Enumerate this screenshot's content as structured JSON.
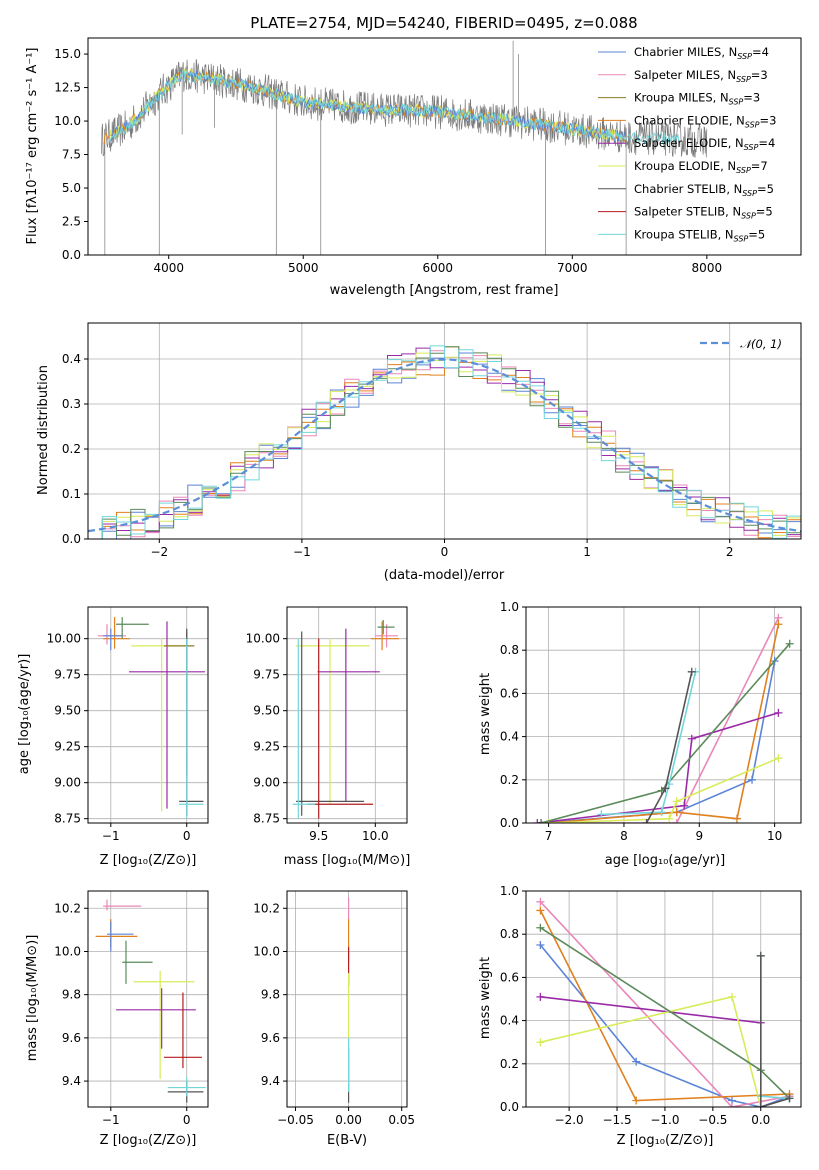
{
  "colors": {
    "Chabrier MILES": "#5b84d6",
    "Salpeter MILES": "#e987b8",
    "Kroupa MILES": "#8c7a1e",
    "Chabrier ELODIE": "#e0801e",
    "Salpeter ELODIE": "#9a2aa8",
    "Kroupa ELODIE": "#d8ec5a",
    "Chabrier STELIB": "#555555",
    "Salpeter STELIB": "#b21e1e",
    "Kroupa STELIB": "#72d6dc",
    "extra_green": "#5a8a5a",
    "normal": "#5b8fd8"
  },
  "chart_data": [
    {
      "id": "spectrum",
      "type": "line",
      "title": "PLATE=2754, MJD=54240, FIBERID=0495, z=0.088",
      "xlabel": "wavelength [Angstrom, rest frame]",
      "ylabel": "Flux [fλ10⁻¹⁷ erg cm⁻² s⁻¹ A⁻¹]",
      "xlim": [
        3400,
        8700
      ],
      "ylim": [
        0,
        16.2
      ],
      "xticks": [
        4000,
        5000,
        6000,
        7000,
        8000
      ],
      "yticks": [
        0.0,
        2.5,
        5.0,
        7.5,
        10.0,
        12.5,
        15.0
      ],
      "ytick_labels": [
        "0.0",
        "2.5",
        "5.0",
        "7.5",
        "10.0",
        "12.5",
        "15.0"
      ],
      "legend_position": "top-right",
      "legend": [
        {
          "label": "Chabrier MILES, N",
          "sub": "SSP",
          "tail": "=4"
        },
        {
          "label": "Salpeter MILES, N",
          "sub": "SSP",
          "tail": "=3"
        },
        {
          "label": "Kroupa MILES, N",
          "sub": "SSP",
          "tail": "=3"
        },
        {
          "label": "Chabrier ELODIE, N",
          "sub": "SSP",
          "tail": "=3"
        },
        {
          "label": "Salpeter ELODIE, N",
          "sub": "SSP",
          "tail": "=4"
        },
        {
          "label": "Kroupa ELODIE, N",
          "sub": "SSP",
          "tail": "=7"
        },
        {
          "label": "Chabrier STELIB, N",
          "sub": "SSP",
          "tail": "=5"
        },
        {
          "label": "Salpeter STELIB, N",
          "sub": "SSP",
          "tail": "=5"
        },
        {
          "label": "Kroupa STELIB, N",
          "sub": "SSP",
          "tail": "=5"
        }
      ],
      "continuum": [
        [
          3500,
          8.6
        ],
        [
          3700,
          9.6
        ],
        [
          3950,
          12.2
        ],
        [
          4100,
          13.5
        ],
        [
          4300,
          13.2
        ],
        [
          4600,
          12.6
        ],
        [
          5000,
          11.4
        ],
        [
          5500,
          10.9
        ],
        [
          6000,
          10.7
        ],
        [
          6500,
          10.1
        ],
        [
          7000,
          9.4
        ],
        [
          7400,
          8.8
        ],
        [
          7800,
          8.6
        ],
        [
          8300,
          8.4
        ],
        [
          8700,
          8.3
        ]
      ],
      "features": [
        [
          3525,
          0
        ],
        [
          3930,
          0
        ],
        [
          4100,
          9
        ],
        [
          4340,
          9.5
        ],
        [
          4800,
          0
        ],
        [
          5130,
          0
        ],
        [
          6800,
          0
        ],
        [
          7400,
          0
        ],
        [
          6560,
          16
        ],
        [
          6600,
          15
        ]
      ]
    },
    {
      "id": "residuals",
      "type": "line",
      "xlabel": "(data-model)/error",
      "ylabel": "Normed distribution",
      "xlim": [
        -2.5,
        2.5
      ],
      "ylim": [
        0,
        0.48
      ],
      "xticks": [
        -2,
        -1,
        0,
        1,
        2
      ],
      "xtick_labels": [
        "−2",
        "−1",
        "0",
        "1",
        "2"
      ],
      "yticks": [
        0.0,
        0.1,
        0.2,
        0.3,
        0.4
      ],
      "ytick_labels": [
        "0.0",
        "0.1",
        "0.2",
        "0.3",
        "0.4"
      ],
      "legend": "𝒩(0, 1)",
      "legend_position": "top-right",
      "grid": true
    },
    {
      "id": "age_vs_Z",
      "type": "scatter",
      "xlabel": "Z [log₁₀(Z/Z⊙)]",
      "ylabel": "age  [log₁₀(age/yr)]",
      "xlim": [
        -1.3,
        0.28
      ],
      "ylim": [
        8.72,
        10.22
      ],
      "xticks": [
        -1,
        0
      ],
      "xtick_labels": [
        "−1",
        "0"
      ],
      "yticks": [
        8.75,
        9.0,
        9.25,
        9.5,
        9.75,
        10.0
      ],
      "ytick_labels": [
        "8.75",
        "9.00",
        "9.25",
        "9.50",
        "9.75",
        "10.00"
      ],
      "points": [
        {
          "color": "Salpeter MILES",
          "x": -1.05,
          "y": 10.02,
          "xerr": [
            0.12,
            0.25
          ],
          "yerr": [
            0.06,
            0.08
          ]
        },
        {
          "color": "Chabrier ELODIE",
          "x": -0.95,
          "y": 10.0,
          "xerr": [
            0.15,
            0.2
          ],
          "yerr": [
            0.07,
            0.15
          ]
        },
        {
          "color": "Chabrier MILES",
          "x": -1.0,
          "y": 10.02,
          "xerr": [
            0.1,
            0.15
          ],
          "yerr": [
            0.1,
            0.05
          ]
        },
        {
          "color": "extra_green",
          "x": -0.85,
          "y": 10.1,
          "xerr": [
            0.08,
            0.35
          ],
          "yerr": [
            0.1,
            0.05
          ]
        },
        {
          "color": "Kroupa ELODIE",
          "x": -0.33,
          "y": 9.95,
          "xerr": [
            0.4,
            0.35
          ],
          "yerr": [
            1.15,
            0.05
          ]
        },
        {
          "color": "Salpeter ELODIE",
          "x": -0.26,
          "y": 9.77,
          "xerr": [
            0.5,
            0.5
          ],
          "yerr": [
            0.95,
            0.35
          ]
        },
        {
          "color": "Kroupa MILES",
          "x": 0.0,
          "y": 9.95,
          "xerr": [
            0.3,
            0.1
          ],
          "yerr": [
            0.9,
            0.1
          ]
        },
        {
          "color": "Chabrier STELIB",
          "x": 0.0,
          "y": 8.87,
          "xerr": [
            0.1,
            0.22
          ],
          "yerr": [
            0.1,
            1.2
          ]
        },
        {
          "color": "Kroupa STELIB",
          "x": 0.0,
          "y": 8.85,
          "xerr": [
            0.1,
            0.22
          ],
          "yerr": [
            0.1,
            1.15
          ]
        }
      ]
    },
    {
      "id": "age_vs_mass",
      "type": "scatter",
      "xlabel": "mass [log₁₀(M/M⊙)]",
      "xlim": [
        9.22,
        10.28
      ],
      "ylim": [
        8.72,
        10.22
      ],
      "xticks": [
        9.5,
        10.0
      ],
      "xtick_labels": [
        "9.5",
        "10.0"
      ],
      "yticks": [
        8.75,
        9.0,
        9.25,
        9.5,
        9.75,
        10.0
      ],
      "ytick_labels": [
        "8.75",
        "9.00",
        "9.25",
        "9.50",
        "9.75",
        "10.00"
      ],
      "points": [
        {
          "color": "Salpeter MILES",
          "x": 10.1,
          "y": 10.02,
          "xerr": [
            0.1,
            0.1
          ],
          "yerr": [
            0.08,
            0.08
          ]
        },
        {
          "color": "Chabrier ELODIE",
          "x": 10.06,
          "y": 10.0,
          "xerr": [
            0.1,
            0.15
          ],
          "yerr": [
            0.08,
            0.12
          ]
        },
        {
          "color": "Kroupa ELODIE",
          "x": 9.6,
          "y": 9.95,
          "xerr": [
            0.3,
            0.35
          ],
          "yerr": [
            1.1,
            0.05
          ]
        },
        {
          "color": "Salpeter ELODIE",
          "x": 9.74,
          "y": 9.77,
          "xerr": [
            0.25,
            0.3
          ],
          "yerr": [
            0.9,
            0.3
          ]
        },
        {
          "color": "extra_green",
          "x": 10.07,
          "y": 10.08,
          "xerr": [
            0.05,
            0.1
          ],
          "yerr": [
            0.05,
            0.05
          ]
        },
        {
          "color": "Chabrier STELIB",
          "x": 9.35,
          "y": 8.87,
          "xerr": [
            0.05,
            0.55
          ],
          "yerr": [
            0.1,
            1.18
          ]
        },
        {
          "color": "Salpeter STELIB",
          "x": 9.5,
          "y": 8.85,
          "xerr": [
            0.1,
            0.48
          ],
          "yerr": [
            0.1,
            1.15
          ]
        },
        {
          "color": "Kroupa STELIB",
          "x": 9.32,
          "y": 8.85,
          "xerr": [
            0.05,
            0.15
          ],
          "yerr": [
            0.1,
            1.15
          ]
        }
      ]
    },
    {
      "id": "weight_vs_age",
      "type": "line",
      "xlabel": "age  [log₁₀(age/yr)]",
      "ylabel": "mass weight",
      "xlim": [
        6.7,
        10.35
      ],
      "ylim": [
        0,
        1.0
      ],
      "xticks": [
        7,
        8,
        9,
        10
      ],
      "xtick_labels": [
        "7",
        "8",
        "9",
        "10"
      ],
      "yticks": [
        0.0,
        0.2,
        0.4,
        0.6,
        0.8,
        1.0
      ],
      "ytick_labels": [
        "0.0",
        "0.2",
        "0.4",
        "0.6",
        "0.8",
        "1.0"
      ],
      "series": [
        {
          "color": "Chabrier MILES",
          "x": [
            6.9,
            8.7,
            9.7,
            10.0
          ],
          "y": [
            0.0,
            0.05,
            0.2,
            0.75
          ]
        },
        {
          "color": "Salpeter MILES",
          "x": [
            7.0,
            8.7,
            10.05
          ],
          "y": [
            0.0,
            0.0,
            0.95
          ]
        },
        {
          "color": "Chabrier ELODIE",
          "x": [
            7.0,
            8.7,
            9.5,
            10.05
          ],
          "y": [
            0.0,
            0.05,
            0.02,
            0.92
          ]
        },
        {
          "color": "Salpeter ELODIE",
          "x": [
            6.85,
            8.8,
            8.9,
            10.05
          ],
          "y": [
            0.0,
            0.08,
            0.39,
            0.51
          ]
        },
        {
          "color": "Kroupa ELODIE",
          "x": [
            7.0,
            8.6,
            8.7,
            10.05
          ],
          "y": [
            0.0,
            0.02,
            0.1,
            0.3
          ]
        },
        {
          "color": "extra_green",
          "x": [
            6.9,
            8.5,
            10.2
          ],
          "y": [
            0.0,
            0.15,
            0.83
          ]
        },
        {
          "color": "Kroupa STELIB",
          "x": [
            7.7,
            8.5,
            8.6,
            8.95
          ],
          "y": [
            0.04,
            0.05,
            0.18,
            0.7
          ]
        },
        {
          "color": "Chabrier STELIB",
          "x": [
            8.3,
            8.55,
            8.9
          ],
          "y": [
            0.0,
            0.16,
            0.7
          ]
        }
      ]
    },
    {
      "id": "mass_vs_Z",
      "type": "scatter",
      "xlabel": "Z [log₁₀(Z/Z⊙)]",
      "ylabel": "mass [log₁₀(M/M⊙)]",
      "xlim": [
        -1.3,
        0.28
      ],
      "ylim": [
        9.28,
        10.28
      ],
      "xticks": [
        -1,
        0
      ],
      "xtick_labels": [
        "−1",
        "0"
      ],
      "yticks": [
        9.4,
        9.6,
        9.8,
        10.0,
        10.2
      ],
      "ytick_labels": [
        "9.4",
        "9.6",
        "9.8",
        "10.0",
        "10.2"
      ],
      "points": [
        {
          "color": "Salpeter MILES",
          "x": -1.05,
          "y": 10.21,
          "xerr": [
            0.05,
            0.45
          ],
          "yerr": [
            0.02,
            0.03
          ]
        },
        {
          "color": "Chabrier ELODIE",
          "x": -1.0,
          "y": 10.07,
          "xerr": [
            0.2,
            0.35
          ],
          "yerr": [
            0.05,
            0.08
          ]
        },
        {
          "color": "Chabrier MILES",
          "x": -1.0,
          "y": 10.08,
          "xerr": [
            0.05,
            0.3
          ],
          "yerr": [
            0.08,
            0.06
          ]
        },
        {
          "color": "extra_green",
          "x": -0.8,
          "y": 9.95,
          "xerr": [
            0.05,
            0.35
          ],
          "yerr": [
            0.1,
            0.1
          ]
        },
        {
          "color": "Kroupa ELODIE",
          "x": -0.35,
          "y": 9.86,
          "xerr": [
            0.35,
            0.45
          ],
          "yerr": [
            0.45,
            0.05
          ]
        },
        {
          "color": "Salpeter ELODIE",
          "x": -0.33,
          "y": 9.73,
          "xerr": [
            0.6,
            0.45
          ],
          "yerr": [
            0.18,
            0.1
          ]
        },
        {
          "color": "Salpeter STELIB",
          "x": -0.05,
          "y": 9.51,
          "xerr": [
            0.25,
            0.25
          ],
          "yerr": [
            0.05,
            0.3
          ]
        },
        {
          "color": "Chabrier STELIB",
          "x": 0.0,
          "y": 9.35,
          "xerr": [
            0.25,
            0.22
          ],
          "yerr": [
            0.05,
            0.05
          ]
        },
        {
          "color": "Kroupa STELIB",
          "x": 0.0,
          "y": 9.37,
          "xerr": [
            0.25,
            0.25
          ],
          "yerr": [
            0.04,
            0.05
          ]
        }
      ]
    },
    {
      "id": "mass_vs_EBV",
      "type": "scatter",
      "xlabel": "E(B-V)",
      "xlim": [
        -0.058,
        0.055
      ],
      "ylim": [
        9.28,
        10.28
      ],
      "xticks": [
        -0.05,
        0.0,
        0.05
      ],
      "xtick_labels": [
        "−0.05",
        "0.00",
        "0.05"
      ],
      "yticks": [
        9.4,
        9.6,
        9.8,
        10.0,
        10.2
      ],
      "ytick_labels": [
        "9.4",
        "9.6",
        "9.8",
        "10.0",
        "10.2"
      ],
      "points": [
        {
          "color": "Salpeter MILES",
          "x": 0.0,
          "y": 10.2,
          "xerr": [
            0,
            0
          ],
          "yerr": [
            0.05,
            0.05
          ]
        },
        {
          "color": "Chabrier ELODIE",
          "x": 0.0,
          "y": 10.05,
          "xerr": [
            0,
            0
          ],
          "yerr": [
            0.1,
            0.1
          ]
        },
        {
          "color": "Salpeter STELIB",
          "x": 0.0,
          "y": 9.92,
          "xerr": [
            0,
            0
          ],
          "yerr": [
            0.08,
            0.1
          ]
        },
        {
          "color": "Kroupa ELODIE",
          "x": 0.0,
          "y": 9.7,
          "xerr": [
            0,
            0
          ],
          "yerr": [
            0.3,
            0.2
          ]
        },
        {
          "color": "Chabrier STELIB",
          "x": 0.0,
          "y": 9.4,
          "xerr": [
            0,
            0
          ],
          "yerr": [
            0.1,
            0.15
          ]
        },
        {
          "color": "Kroupa STELIB",
          "x": 0.0,
          "y": 9.45,
          "xerr": [
            0,
            0
          ],
          "yerr": [
            0.1,
            0.15
          ]
        }
      ]
    },
    {
      "id": "weight_vs_Z",
      "type": "line",
      "xlabel": "Z [log₁₀(Z/Z⊙)]",
      "ylabel": "mass weight",
      "xlim": [
        -2.45,
        0.42
      ],
      "ylim": [
        0,
        1.0
      ],
      "xticks": [
        -2.0,
        -1.5,
        -1.0,
        -0.5,
        0.0
      ],
      "xtick_labels": [
        "−2.0",
        "−1.5",
        "−1.0",
        "−0.5",
        "0.0"
      ],
      "yticks": [
        0.0,
        0.2,
        0.4,
        0.6,
        0.8,
        1.0
      ],
      "ytick_labels": [
        "0.0",
        "0.2",
        "0.4",
        "0.6",
        "0.8",
        "1.0"
      ],
      "series": [
        {
          "color": "Chabrier MILES",
          "x": [
            -2.3,
            -1.3,
            -0.3,
            0.0,
            0.3
          ],
          "y": [
            0.75,
            0.21,
            0.03,
            0.0,
            0.05
          ]
        },
        {
          "color": "Salpeter MILES",
          "x": [
            -2.3,
            -0.3,
            0.3
          ],
          "y": [
            0.95,
            0.0,
            0.05
          ]
        },
        {
          "color": "Chabrier ELODIE",
          "x": [
            -2.3,
            -1.3,
            0.3
          ],
          "y": [
            0.91,
            0.03,
            0.06
          ]
        },
        {
          "color": "Salpeter ELODIE",
          "x": [
            -2.3,
            0.0
          ],
          "y": [
            0.51,
            0.39
          ]
        },
        {
          "color": "Kroupa ELODIE",
          "x": [
            -2.3,
            -0.3,
            0.0
          ],
          "y": [
            0.3,
            0.51,
            0.0
          ]
        },
        {
          "color": "extra_green",
          "x": [
            -2.3,
            0.0,
            0.3
          ],
          "y": [
            0.83,
            0.17,
            0.04
          ]
        },
        {
          "color": "Kroupa STELIB",
          "x": [
            0.0,
            0.0,
            0.3
          ],
          "y": [
            0.7,
            0.05,
            0.04
          ]
        },
        {
          "color": "Chabrier STELIB",
          "x": [
            0.0,
            0.0,
            0.3
          ],
          "y": [
            0.7,
            0.0,
            0.04
          ]
        }
      ]
    }
  ]
}
